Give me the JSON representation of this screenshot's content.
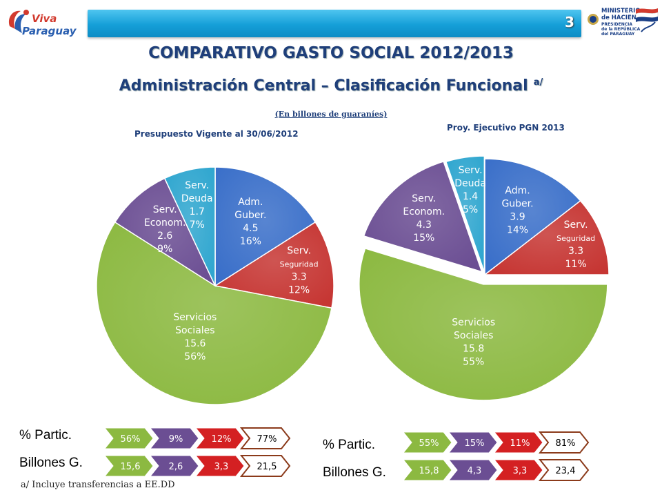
{
  "header": {
    "slide_number": "3",
    "logo_left_line1": "Viva",
    "logo_left_line2": "Paraguay",
    "logo_right_line1": "MINISTERIO",
    "logo_right_line2": "de HACIENDA",
    "logo_right_line3": "PRESIDENCIA",
    "logo_right_line4": "de la REPÚBLICA",
    "logo_right_line5": "del PARAGUAY"
  },
  "title": "COMPARATIVO GASTO SOCIAL 2012/2013",
  "subtitle": "Administración Central – Clasificación Funcional",
  "subtitle_sup": "a/",
  "units": "(En   billones  de guaraníes)",
  "footnote": "a/  Incluye transferencias a EE.DD",
  "colors": {
    "adm_guber": "#3a6fc9",
    "serv_seguridad": "#c63633",
    "servicios_sociales": "#8cb941",
    "serv_econom": "#6b4e93",
    "serv_deuda": "#2fa6cf"
  },
  "chart_data": [
    {
      "type": "pie",
      "title": "Presupuesto Vigente al 30/06/2012",
      "slices": [
        {
          "key": "adm_guber",
          "label_lines": [
            "Adm.",
            "Guber."
          ],
          "value": 4.5,
          "value_label": "4.5",
          "percent": 16,
          "percent_label": "16%"
        },
        {
          "key": "serv_seguridad",
          "label_lines": [
            "Serv.",
            "Seguridad"
          ],
          "value": 3.3,
          "value_label": "3.3",
          "percent": 12,
          "percent_label": "12%"
        },
        {
          "key": "servicios_sociales",
          "label_lines": [
            "Servicios",
            "Sociales"
          ],
          "value": 15.6,
          "value_label": "15.6",
          "percent": 56,
          "percent_label": "56%"
        },
        {
          "key": "serv_econom",
          "label_lines": [
            "Serv.",
            "Econom."
          ],
          "value": 2.6,
          "value_label": "2.6",
          "percent": 9,
          "percent_label": "9%"
        },
        {
          "key": "serv_deuda",
          "label_lines": [
            "Serv.",
            "Deuda"
          ],
          "value": 1.7,
          "value_label": "1.7",
          "percent": 7,
          "percent_label": "7%"
        }
      ],
      "legend": {
        "pct_label": "% Partic.",
        "billones_label": "Billones G.",
        "pct_cells": [
          "56%",
          "9%",
          "12%",
          "77%"
        ],
        "billones_cells": [
          "15,6",
          "2,6",
          "3,3",
          "21,5"
        ]
      }
    },
    {
      "type": "pie",
      "title": "Proy. Ejecutivo PGN 2013",
      "slices": [
        {
          "key": "adm_guber",
          "label_lines": [
            "Adm.",
            "Guber."
          ],
          "value": 3.9,
          "value_label": "3.9",
          "percent": 14,
          "percent_label": "14%"
        },
        {
          "key": "serv_seguridad",
          "label_lines": [
            "Serv.",
            "Seguridad"
          ],
          "value": 3.3,
          "value_label": "3.3",
          "percent": 11,
          "percent_label": "11%"
        },
        {
          "key": "servicios_sociales",
          "label_lines": [
            "Servicios",
            "Sociales"
          ],
          "value": 15.8,
          "value_label": "15.8",
          "percent": 55,
          "percent_label": "55%"
        },
        {
          "key": "serv_econom",
          "label_lines": [
            "Serv.",
            "Econom."
          ],
          "value": 4.3,
          "value_label": "4.3",
          "percent": 15,
          "percent_label": "15%"
        },
        {
          "key": "serv_deuda",
          "label_lines": [
            "Serv.",
            "Deuda"
          ],
          "value": 1.4,
          "value_label": "1.4",
          "percent": 5,
          "percent_label": "5%"
        }
      ],
      "legend": {
        "pct_label": "% Partic.",
        "billones_label": "Billones G.",
        "pct_cells": [
          "55%",
          "15%",
          "11%",
          "81%"
        ],
        "billones_cells": [
          "15,8",
          "4,3",
          "3,3",
          "23,4"
        ]
      }
    }
  ]
}
